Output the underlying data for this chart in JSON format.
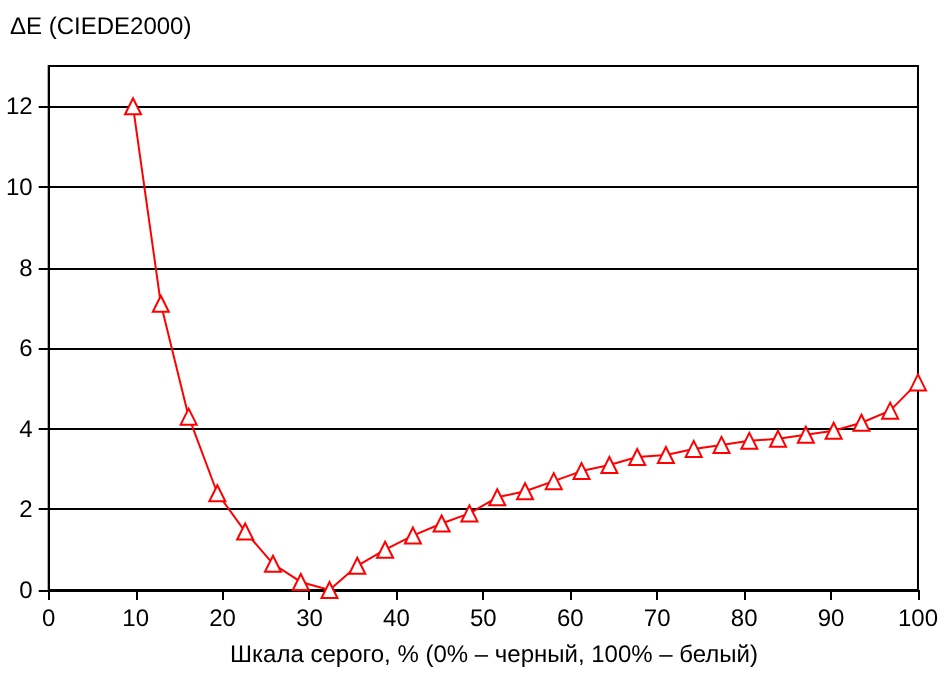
{
  "chart_data": {
    "type": "line",
    "ylabel": "ΔE (CIEDE2000)",
    "xlabel": "Шкала серого, % (0% – черный, 100% – белый)",
    "x": [
      9.7,
      12.9,
      16.1,
      19.4,
      22.6,
      25.8,
      29.0,
      32.3,
      35.5,
      38.7,
      41.9,
      45.2,
      48.4,
      51.6,
      54.8,
      58.1,
      61.3,
      64.5,
      67.7,
      71.0,
      74.2,
      77.4,
      80.6,
      83.9,
      87.1,
      90.3,
      93.5,
      96.8,
      100
    ],
    "series": [
      {
        "color": "#ff0000",
        "values": [
          12.0,
          7.1,
          4.3,
          2.4,
          1.45,
          0.65,
          0.2,
          0.0,
          0.6,
          1.0,
          1.35,
          1.65,
          1.9,
          2.3,
          2.45,
          2.7,
          2.95,
          3.1,
          3.3,
          3.35,
          3.5,
          3.6,
          3.7,
          3.75,
          3.85,
          3.95,
          4.15,
          4.45,
          5.15
        ]
      }
    ],
    "xlim": [
      0,
      100
    ],
    "xticks": [
      0,
      10,
      20,
      30,
      40,
      50,
      60,
      70,
      80,
      90,
      100
    ],
    "ylim": [
      0,
      13
    ],
    "yticks": [
      0,
      2,
      4,
      6,
      8,
      10,
      12
    ],
    "grid": "y",
    "marker": "triangle",
    "line_style": "solid"
  }
}
